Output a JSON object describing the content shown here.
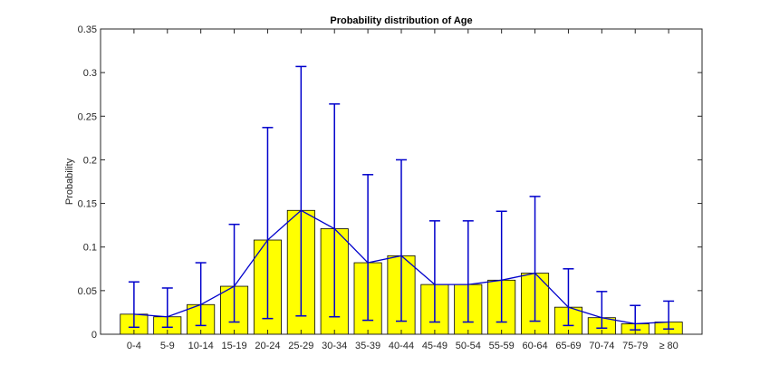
{
  "chart_data": {
    "type": "bar",
    "title": "Probability distribution of Age",
    "xlabel": "",
    "ylabel": "Probability",
    "ylim": [
      0,
      0.35
    ],
    "yticks": [
      0,
      0.05,
      0.1,
      0.15,
      0.2,
      0.25,
      0.3,
      0.35
    ],
    "ytick_labels": [
      "0",
      "0.05",
      "0.1",
      "0.15",
      "0.2",
      "0.25",
      "0.3",
      "0.35"
    ],
    "categories": [
      "0-4",
      "5-9",
      "10-14",
      "15-19",
      "20-24",
      "25-29",
      "30-34",
      "35-39",
      "40-44",
      "45-49",
      "50-54",
      "55-59",
      "60-64",
      "65-69",
      "70-74",
      "75-79",
      "≥ 80"
    ],
    "values": [
      0.023,
      0.02,
      0.034,
      0.055,
      0.108,
      0.142,
      0.121,
      0.082,
      0.09,
      0.057,
      0.057,
      0.062,
      0.07,
      0.031,
      0.019,
      0.012,
      0.014
    ],
    "error_lower": [
      0.008,
      0.008,
      0.01,
      0.014,
      0.018,
      0.021,
      0.02,
      0.016,
      0.015,
      0.014,
      0.014,
      0.014,
      0.015,
      0.01,
      0.007,
      0.005,
      0.006
    ],
    "error_upper": [
      0.06,
      0.053,
      0.082,
      0.126,
      0.237,
      0.307,
      0.264,
      0.183,
      0.2,
      0.13,
      0.13,
      0.141,
      0.158,
      0.075,
      0.049,
      0.033,
      0.038
    ],
    "grid": false,
    "colors": {
      "bar_fill": "#ffff00",
      "bar_edge": "#000000",
      "line": "#0000cc"
    }
  }
}
